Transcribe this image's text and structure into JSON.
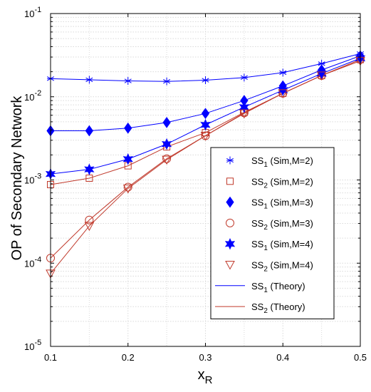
{
  "chart_data": {
    "type": "line",
    "title": "",
    "xlabel": "x",
    "xlabel_sub": "R",
    "ylabel": "OP of Secondary Network",
    "x": [
      0.1,
      0.15,
      0.2,
      0.25,
      0.3,
      0.35,
      0.4,
      0.45,
      0.5
    ],
    "xlim": [
      0.1,
      0.5
    ],
    "ylim": [
      1e-05,
      0.1
    ],
    "y_scale": "log",
    "grid": true,
    "minor_grid": true,
    "legend_position": "lower-right",
    "x_ticks": [
      "0.1",
      "0.2",
      "0.3",
      "0.4",
      "0.5"
    ],
    "y_ticks": [
      {
        "base": "10",
        "exp": "-5"
      },
      {
        "base": "10",
        "exp": "-4"
      },
      {
        "base": "10",
        "exp": "-3"
      },
      {
        "base": "10",
        "exp": "-2"
      },
      {
        "base": "10",
        "exp": "-1"
      }
    ],
    "colors": {
      "blue": "#0000ff",
      "red": "#c0392b",
      "grid": "#d9d9d9",
      "axis": "#000000"
    },
    "series": [
      {
        "name": "SS",
        "sub": "1",
        "suffix": " (Sim,M=2)",
        "marker": "asterisk",
        "color": "#0000ff",
        "values": [
          0.0165,
          0.016,
          0.0155,
          0.0153,
          0.0158,
          0.017,
          0.0195,
          0.025,
          0.033
        ]
      },
      {
        "name": "SS",
        "sub": "2",
        "suffix": " (Sim,M=2)",
        "marker": "square",
        "color": "#c0392b",
        "values": [
          0.00088,
          0.00105,
          0.00148,
          0.0025,
          0.0037,
          0.0065,
          0.011,
          0.018,
          0.028
        ]
      },
      {
        "name": "SS",
        "sub": "1",
        "suffix": " (Sim,M=3)",
        "marker": "diamond",
        "color": "#0000ff",
        "values": [
          0.0039,
          0.0039,
          0.0042,
          0.0049,
          0.0063,
          0.009,
          0.0135,
          0.021,
          0.031
        ]
      },
      {
        "name": "SS",
        "sub": "2",
        "suffix": " (Sim,M=3)",
        "marker": "circle",
        "color": "#c0392b",
        "values": [
          0.000115,
          0.00033,
          0.00082,
          0.0018,
          0.0034,
          0.0064,
          0.011,
          0.018,
          0.028
        ]
      },
      {
        "name": "SS",
        "sub": "1",
        "suffix": " (Sim,M=4)",
        "marker": "star",
        "color": "#0000ff",
        "values": [
          0.00118,
          0.00134,
          0.00178,
          0.0027,
          0.0046,
          0.0075,
          0.012,
          0.019,
          0.029
        ]
      },
      {
        "name": "SS",
        "sub": "2",
        "suffix": " (Sim,M=4)",
        "marker": "triangle-down",
        "color": "#c0392b",
        "values": [
          7.5e-05,
          0.00028,
          0.00079,
          0.00175,
          0.0034,
          0.0063,
          0.011,
          0.018,
          0.027
        ]
      }
    ],
    "theory_lines": [
      {
        "name": "SS",
        "sub": "1",
        "suffix": " (Theory)",
        "color": "#0000ff",
        "fits": [
          0,
          2,
          4
        ]
      },
      {
        "name": "SS",
        "sub": "2",
        "suffix": " (Theory)",
        "color": "#c0392b",
        "fits": [
          1,
          3,
          5
        ]
      }
    ]
  }
}
